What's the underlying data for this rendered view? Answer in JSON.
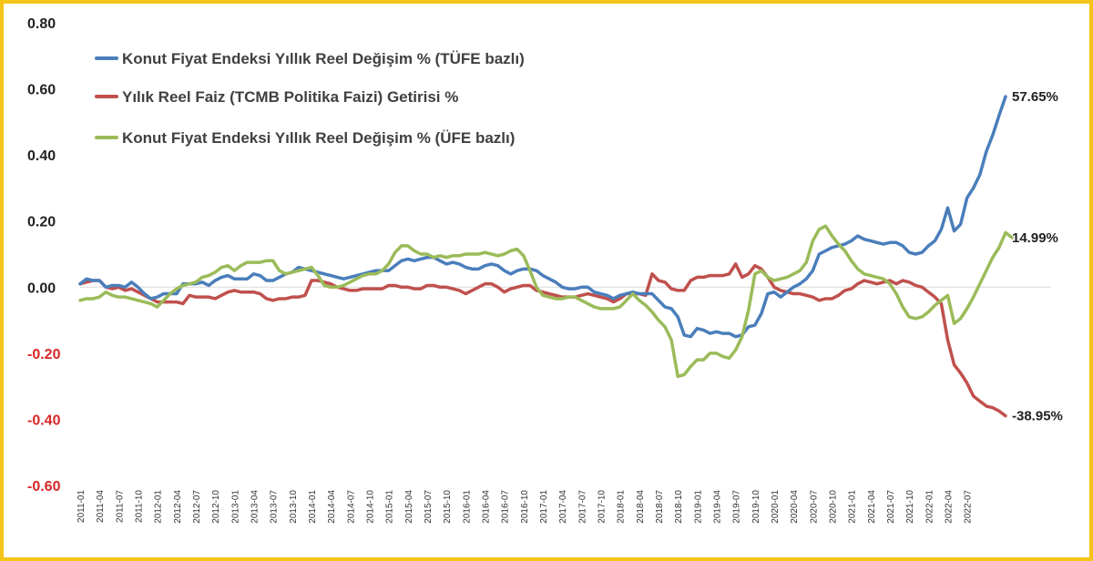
{
  "chart_data": {
    "type": "line",
    "ylim": [
      -0.6,
      0.8
    ],
    "yticks": [
      "0.80",
      "0.60",
      "0.40",
      "0.20",
      "0.00",
      "-0.20",
      "-0.40",
      "-0.60"
    ],
    "ytick_values": [
      0.8,
      0.6,
      0.4,
      0.2,
      0.0,
      -0.2,
      -0.4,
      -0.6
    ],
    "positive_tick_color": "#222222",
    "negative_tick_color": "#d62728",
    "grid": false,
    "legend_position": "top-left",
    "x_start": "2011-01",
    "x_end": "2022-09",
    "xtick_labels": [
      "2011-01",
      "2011-04",
      "2011-07",
      "2011-10",
      "2012-01",
      "2012-04",
      "2012-07",
      "2012-10",
      "2013-01",
      "2013-04",
      "2013-07",
      "2013-10",
      "2014-01",
      "2014-04",
      "2014-07",
      "2014-10",
      "2015-01",
      "2015-04",
      "2015-07",
      "2015-10",
      "2016-01",
      "2016-04",
      "2016-07",
      "2016-10",
      "2017-01",
      "2017-04",
      "2017-07",
      "2017-10",
      "2018-01",
      "2018-04",
      "2018-07",
      "2018-10",
      "2019-01",
      "2019-04",
      "2019-07",
      "2019-10",
      "2020-01",
      "2020-04",
      "2020-07",
      "2020-10",
      "2021-01",
      "2021-04",
      "2021-07",
      "2021-10",
      "2022-01",
      "2022-04",
      "2022-07"
    ],
    "series": [
      {
        "name": "Konut Fiyat Endeksi Yıllık Reel Değişim % (TÜFE bazlı)",
        "color": "#4a7ebb",
        "end_label": "57.65%",
        "values": [
          0.01,
          0.025,
          0.02,
          0.02,
          0.0,
          0.005,
          0.005,
          0.0,
          0.015,
          0.0,
          -0.02,
          -0.035,
          -0.03,
          -0.02,
          -0.02,
          -0.02,
          0.01,
          0.01,
          0.01,
          0.015,
          0.005,
          0.02,
          0.03,
          0.035,
          0.025,
          0.025,
          0.025,
          0.04,
          0.035,
          0.02,
          0.02,
          0.03,
          0.04,
          0.045,
          0.06,
          0.055,
          0.05,
          0.045,
          0.04,
          0.035,
          0.03,
          0.025,
          0.03,
          0.035,
          0.04,
          0.045,
          0.05,
          0.05,
          0.05,
          0.065,
          0.08,
          0.085,
          0.08,
          0.085,
          0.09,
          0.09,
          0.08,
          0.07,
          0.075,
          0.07,
          0.06,
          0.055,
          0.055,
          0.065,
          0.07,
          0.065,
          0.05,
          0.04,
          0.05,
          0.055,
          0.055,
          0.05,
          0.035,
          0.025,
          0.015,
          0.0,
          -0.005,
          -0.005,
          0.0,
          0.0,
          -0.015,
          -0.02,
          -0.025,
          -0.035,
          -0.025,
          -0.02,
          -0.015,
          -0.02,
          -0.02,
          -0.02,
          -0.04,
          -0.06,
          -0.065,
          -0.09,
          -0.145,
          -0.15,
          -0.125,
          -0.13,
          -0.14,
          -0.135,
          -0.14,
          -0.14,
          -0.15,
          -0.145,
          -0.12,
          -0.115,
          -0.08,
          -0.02,
          -0.015,
          -0.03,
          -0.015,
          0.0,
          0.01,
          0.025,
          0.05,
          0.1,
          0.11,
          0.12,
          0.125,
          0.13,
          0.14,
          0.155,
          0.145,
          0.14,
          0.135,
          0.13,
          0.135,
          0.135,
          0.125,
          0.105,
          0.1,
          0.105,
          0.125,
          0.14,
          0.175,
          0.24,
          0.17,
          0.19,
          0.27,
          0.3,
          0.34,
          0.41,
          0.46,
          0.52,
          0.5765
        ]
      },
      {
        "name": "Yılık Reel Faiz (TCMB Politika Faizi) Getirisi %",
        "color": "#c0504d",
        "end_label": "-38.95%",
        "values": [
          0.01,
          0.015,
          0.02,
          0.02,
          0.0,
          -0.005,
          0.0,
          -0.01,
          -0.005,
          -0.015,
          -0.025,
          -0.035,
          -0.045,
          -0.045,
          -0.045,
          -0.045,
          -0.05,
          -0.025,
          -0.03,
          -0.03,
          -0.03,
          -0.035,
          -0.025,
          -0.015,
          -0.01,
          -0.015,
          -0.015,
          -0.015,
          -0.02,
          -0.035,
          -0.04,
          -0.035,
          -0.035,
          -0.03,
          -0.03,
          -0.025,
          0.02,
          0.02,
          0.015,
          0.01,
          0.0,
          -0.005,
          -0.01,
          -0.01,
          -0.005,
          -0.005,
          -0.005,
          -0.005,
          0.005,
          0.005,
          0.0,
          0.0,
          -0.005,
          -0.005,
          0.005,
          0.005,
          0.0,
          0.0,
          -0.005,
          -0.01,
          -0.02,
          -0.01,
          0.0,
          0.01,
          0.01,
          0.0,
          -0.015,
          -0.005,
          0.0,
          0.005,
          0.005,
          -0.01,
          -0.015,
          -0.02,
          -0.025,
          -0.03,
          -0.03,
          -0.03,
          -0.025,
          -0.02,
          -0.025,
          -0.03,
          -0.035,
          -0.045,
          -0.035,
          -0.02,
          -0.02,
          -0.02,
          -0.025,
          0.04,
          0.02,
          0.015,
          -0.005,
          -0.01,
          -0.01,
          0.02,
          0.03,
          0.03,
          0.035,
          0.035,
          0.035,
          0.04,
          0.07,
          0.03,
          0.04,
          0.065,
          0.055,
          0.03,
          0.0,
          -0.01,
          -0.015,
          -0.02,
          -0.02,
          -0.025,
          -0.03,
          -0.04,
          -0.035,
          -0.035,
          -0.025,
          -0.01,
          -0.005,
          0.01,
          0.02,
          0.015,
          0.01,
          0.015,
          0.02,
          0.01,
          0.02,
          0.015,
          0.005,
          0.0,
          -0.015,
          -0.03,
          -0.05,
          -0.16,
          -0.235,
          -0.26,
          -0.29,
          -0.33,
          -0.345,
          -0.36,
          -0.365,
          -0.375,
          -0.3895
        ]
      },
      {
        "name": "Konut Fiyat Endeksi Yıllık Reel Değişim % (ÜFE bazlı)",
        "color": "#9bbb59",
        "end_label": "14.99%",
        "values": [
          -0.04,
          -0.035,
          -0.035,
          -0.03,
          -0.015,
          -0.025,
          -0.03,
          -0.03,
          -0.035,
          -0.04,
          -0.045,
          -0.05,
          -0.06,
          -0.04,
          -0.02,
          -0.005,
          0.005,
          0.01,
          0.015,
          0.03,
          0.035,
          0.045,
          0.06,
          0.065,
          0.05,
          0.065,
          0.075,
          0.075,
          0.075,
          0.08,
          0.08,
          0.05,
          0.04,
          0.045,
          0.05,
          0.055,
          0.06,
          0.035,
          0.005,
          0.0,
          0.0,
          0.005,
          0.015,
          0.025,
          0.035,
          0.04,
          0.04,
          0.05,
          0.07,
          0.105,
          0.125,
          0.125,
          0.11,
          0.1,
          0.1,
          0.09,
          0.095,
          0.09,
          0.095,
          0.095,
          0.1,
          0.1,
          0.1,
          0.105,
          0.1,
          0.095,
          0.1,
          0.11,
          0.115,
          0.095,
          0.05,
          0.0,
          -0.025,
          -0.03,
          -0.035,
          -0.035,
          -0.03,
          -0.03,
          -0.04,
          -0.05,
          -0.06,
          -0.065,
          -0.065,
          -0.065,
          -0.06,
          -0.04,
          -0.02,
          -0.04,
          -0.055,
          -0.075,
          -0.1,
          -0.12,
          -0.16,
          -0.27,
          -0.265,
          -0.24,
          -0.22,
          -0.22,
          -0.2,
          -0.2,
          -0.21,
          -0.215,
          -0.19,
          -0.15,
          -0.07,
          0.04,
          0.05,
          0.03,
          0.02,
          0.025,
          0.03,
          0.04,
          0.05,
          0.075,
          0.14,
          0.175,
          0.185,
          0.155,
          0.13,
          0.11,
          0.08,
          0.055,
          0.04,
          0.035,
          0.03,
          0.025,
          0.01,
          -0.02,
          -0.06,
          -0.09,
          -0.095,
          -0.09,
          -0.075,
          -0.055,
          -0.04,
          -0.025,
          -0.11,
          -0.095,
          -0.065,
          -0.03,
          0.01,
          0.05,
          0.09,
          0.12,
          0.165,
          0.1499
        ]
      }
    ]
  }
}
